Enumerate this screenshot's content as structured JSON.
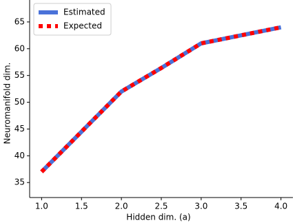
{
  "chart_data": {
    "type": "line",
    "x": [
      1.0,
      1.5,
      2.0,
      2.5,
      3.0,
      3.5,
      4.0
    ],
    "series": [
      {
        "name": "Estimated",
        "color": "#4a72d9",
        "values": [
          37,
          44.5,
          52,
          56.4,
          61,
          62.5,
          64
        ]
      },
      {
        "name": "Expected",
        "color": "#ff0000",
        "values": [
          37,
          44.5,
          52,
          56.4,
          61,
          62.5,
          64
        ]
      }
    ],
    "xlabel": "Hidden dim. (a)",
    "ylabel": "Neuromanifold dim.",
    "xlim": [
      0.85,
      4.15
    ],
    "ylim": [
      32.2,
      69.1
    ],
    "xticks": [
      {
        "value": 1.0,
        "label": "1.0"
      },
      {
        "value": 1.5,
        "label": "1.5"
      },
      {
        "value": 2.0,
        "label": "2.0"
      },
      {
        "value": 2.5,
        "label": "2.5"
      },
      {
        "value": 3.0,
        "label": "3.0"
      },
      {
        "value": 3.5,
        "label": "3.5"
      },
      {
        "value": 4.0,
        "label": "4.0"
      }
    ],
    "yticks": [
      35,
      40,
      45,
      50,
      55,
      60,
      65
    ],
    "legend": "upper left"
  }
}
